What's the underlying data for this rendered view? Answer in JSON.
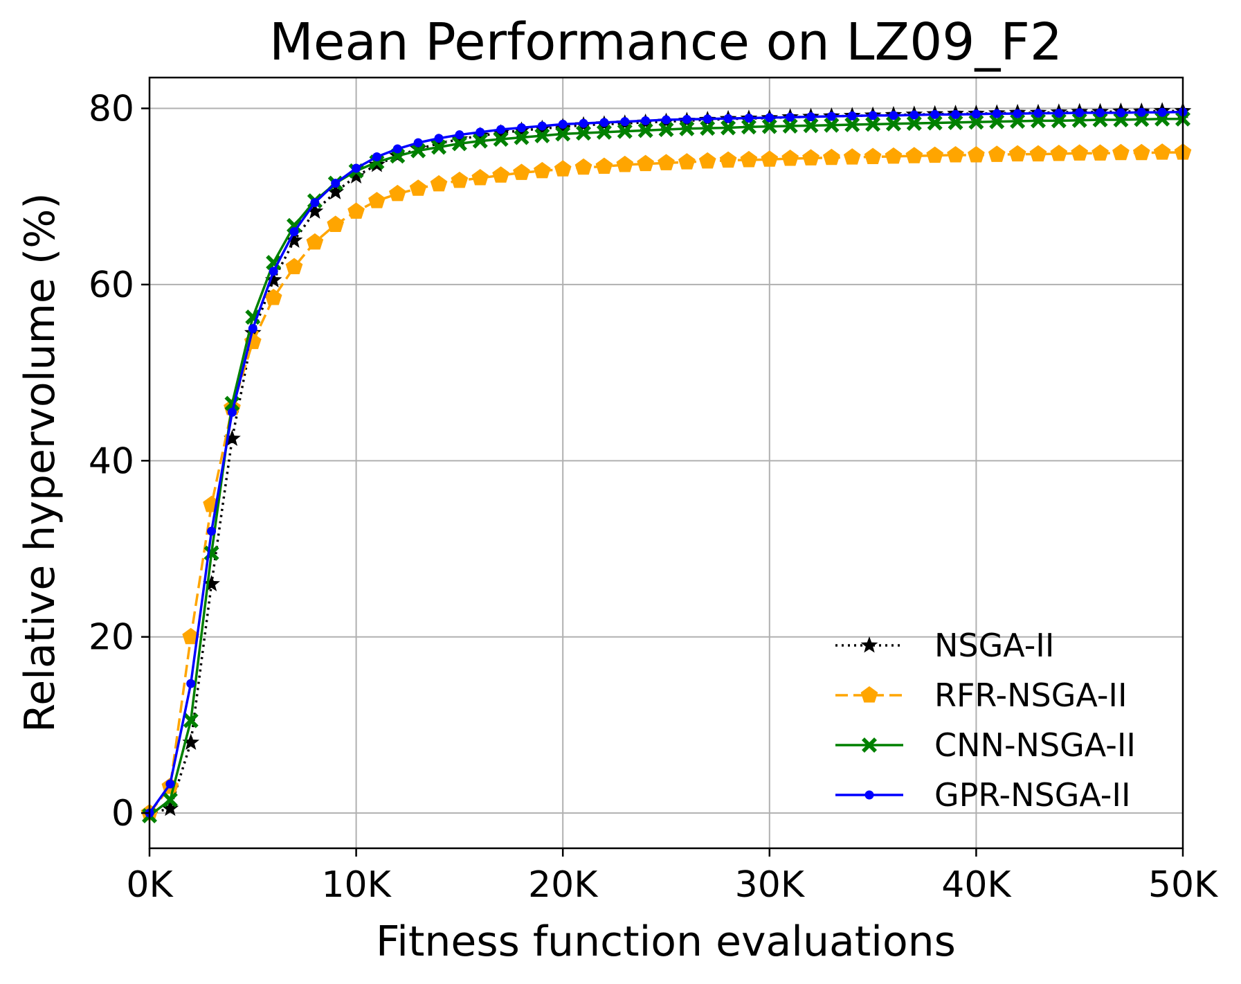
{
  "chart_data": {
    "type": "line",
    "title": "Mean Performance on LZ09_F2",
    "xlabel": "Fitness function evaluations",
    "ylabel": "Relative hypervolume (%)",
    "xlim": [
      0,
      50000
    ],
    "ylim": [
      -4,
      83.5
    ],
    "xticks": [
      0,
      10000,
      20000,
      30000,
      40000,
      50000
    ],
    "xtick_labels": [
      "0K",
      "10K",
      "20K",
      "30K",
      "40K",
      "50K"
    ],
    "yticks": [
      0,
      20,
      40,
      60,
      80
    ],
    "ytick_labels": [
      "0",
      "20",
      "40",
      "60",
      "80"
    ],
    "grid": true,
    "legend_position": "lower-right",
    "x": [
      0,
      1000,
      2000,
      3000,
      4000,
      5000,
      6000,
      7000,
      8000,
      9000,
      10000,
      11000,
      12000,
      13000,
      14000,
      15000,
      16000,
      17000,
      18000,
      19000,
      20000,
      21000,
      22000,
      23000,
      24000,
      25000,
      26000,
      27000,
      28000,
      29000,
      30000,
      31000,
      32000,
      33000,
      34000,
      35000,
      36000,
      37000,
      38000,
      39000,
      40000,
      41000,
      42000,
      43000,
      44000,
      45000,
      46000,
      47000,
      48000,
      49000,
      50000
    ],
    "series": [
      {
        "name": "NSGA-II",
        "color": "#000000",
        "linestyle": "dotted",
        "marker": "star",
        "values": [
          0,
          0.5,
          8,
          26,
          42.5,
          54.5,
          60.5,
          65,
          68.3,
          70.5,
          72.3,
          73.6,
          74.6,
          75.4,
          76.0,
          76.5,
          76.9,
          77.2,
          77.5,
          77.7,
          77.9,
          78.1,
          78.2,
          78.3,
          78.4,
          78.5,
          78.6,
          78.7,
          78.8,
          78.85,
          78.9,
          79.0,
          79.05,
          79.1,
          79.15,
          79.2,
          79.25,
          79.3,
          79.35,
          79.4,
          79.4,
          79.45,
          79.5,
          79.5,
          79.55,
          79.6,
          79.6,
          79.65,
          79.65,
          79.7,
          79.7
        ]
      },
      {
        "name": "RFR-NSGA-II",
        "color": "#ffa500",
        "linestyle": "dashed",
        "marker": "pentagon",
        "values": [
          0,
          3,
          20,
          35,
          46,
          53.5,
          58.5,
          62,
          64.8,
          66.8,
          68.3,
          69.5,
          70.3,
          70.9,
          71.4,
          71.8,
          72.1,
          72.4,
          72.7,
          72.9,
          73.1,
          73.3,
          73.4,
          73.6,
          73.7,
          73.8,
          73.9,
          74.0,
          74.1,
          74.15,
          74.2,
          74.3,
          74.35,
          74.4,
          74.45,
          74.5,
          74.55,
          74.6,
          74.65,
          74.7,
          74.7,
          74.75,
          74.8,
          74.8,
          74.85,
          74.9,
          74.9,
          74.95,
          74.95,
          75.0,
          75.0
        ]
      },
      {
        "name": "CNN-NSGA-II",
        "color": "#008000",
        "linestyle": "solid",
        "marker": "x-filled",
        "values": [
          -0.3,
          1.5,
          10.5,
          29.5,
          46.5,
          56.3,
          62.5,
          66.7,
          69.5,
          71.5,
          72.9,
          73.9,
          74.6,
          75.2,
          75.6,
          76.0,
          76.3,
          76.5,
          76.7,
          76.9,
          77.1,
          77.2,
          77.3,
          77.4,
          77.5,
          77.6,
          77.7,
          77.75,
          77.8,
          77.9,
          77.95,
          78.0,
          78.05,
          78.1,
          78.15,
          78.2,
          78.25,
          78.3,
          78.35,
          78.4,
          78.45,
          78.5,
          78.55,
          78.6,
          78.6,
          78.65,
          78.7,
          78.7,
          78.75,
          78.8,
          78.8
        ]
      },
      {
        "name": "GPR-NSGA-II",
        "color": "#0000ff",
        "linestyle": "solid",
        "marker": "dot",
        "values": [
          0,
          3.3,
          14.7,
          32,
          45.5,
          55,
          61.5,
          66,
          69.3,
          71.5,
          73.2,
          74.5,
          75.4,
          76.1,
          76.6,
          77.0,
          77.3,
          77.6,
          77.8,
          78.0,
          78.2,
          78.3,
          78.4,
          78.5,
          78.6,
          78.7,
          78.75,
          78.8,
          78.85,
          78.9,
          78.95,
          79.0,
          79.05,
          79.1,
          79.15,
          79.2,
          79.2,
          79.25,
          79.3,
          79.3,
          79.35,
          79.4,
          79.4,
          79.45,
          79.45,
          79.5,
          79.5,
          79.5,
          79.55,
          79.55,
          79.6
        ]
      }
    ]
  }
}
